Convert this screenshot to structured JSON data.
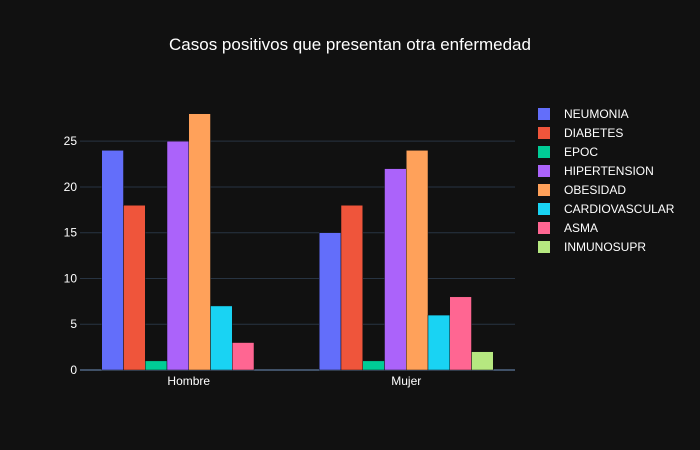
{
  "chart_data": {
    "type": "bar",
    "title": "Casos positivos que presentan otra enfermedad",
    "xlabel": "",
    "ylabel": "",
    "categories": [
      "Hombre",
      "Mujer"
    ],
    "ylim": [
      0,
      29.5
    ],
    "yticks": [
      0,
      5,
      10,
      15,
      20,
      25
    ],
    "grid": true,
    "legend_position": "right",
    "series": [
      {
        "name": "NEUMONIA",
        "color": "#636efa",
        "values": [
          24,
          15
        ]
      },
      {
        "name": "DIABETES",
        "color": "#EF553B",
        "values": [
          18,
          18
        ]
      },
      {
        "name": "EPOC",
        "color": "#00cc96",
        "values": [
          1,
          1
        ]
      },
      {
        "name": "HIPERTENSION",
        "color": "#ab63fa",
        "values": [
          25,
          22
        ]
      },
      {
        "name": "OBESIDAD",
        "color": "#FFA15A",
        "values": [
          28,
          24
        ]
      },
      {
        "name": "CARDIOVASCULAR",
        "color": "#19d3f3",
        "values": [
          7,
          6
        ]
      },
      {
        "name": "ASMA",
        "color": "#FF6692",
        "values": [
          3,
          8
        ]
      },
      {
        "name": "INMUNOSUPR",
        "color": "#B6E880",
        "values": [
          0,
          2
        ]
      }
    ]
  },
  "colors": {
    "background": "#111111",
    "grid": "#283442",
    "text": "#ffffff"
  }
}
